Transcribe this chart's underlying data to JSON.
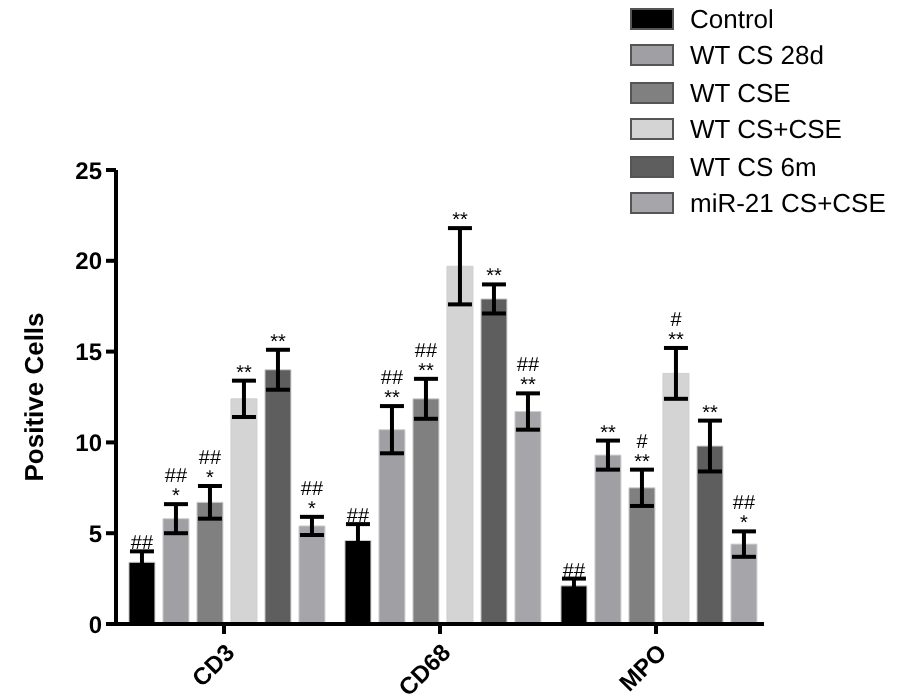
{
  "chart_data": {
    "type": "bar",
    "ylabel": "Positive Cells",
    "categories": [
      "CD3",
      "CD68",
      "MPO"
    ],
    "series": [
      {
        "name": "Control",
        "color": "#000000",
        "values": [
          3.4,
          4.6,
          2.1
        ],
        "errors": [
          0.6,
          0.9,
          0.4
        ],
        "value_labels": [
          "##",
          "##",
          "##"
        ]
      },
      {
        "name": "WT CS 28d",
        "color": "#a0a0a4",
        "values": [
          5.8,
          10.7,
          9.3
        ],
        "errors": [
          0.8,
          1.3,
          0.8
        ],
        "value_labels": [
          "##\n*",
          "##\n**",
          "**"
        ]
      },
      {
        "name": "WT CSE",
        "color": "#808080",
        "values": [
          6.7,
          12.4,
          7.5
        ],
        "errors": [
          0.9,
          1.1,
          1.0
        ],
        "value_labels": [
          "##\n*",
          "##\n**",
          "#\n**"
        ]
      },
      {
        "name": "WT CS+CSE",
        "color": "#d4d4d4",
        "values": [
          12.4,
          19.7,
          13.8
        ],
        "errors": [
          1.0,
          2.1,
          1.4
        ],
        "value_labels": [
          "**",
          "**",
          "#\n**"
        ]
      },
      {
        "name": "WT CS 6m",
        "color": "#5e5e5e",
        "values": [
          14.0,
          17.9,
          9.8
        ],
        "errors": [
          1.1,
          0.8,
          1.4
        ],
        "value_labels": [
          "**",
          "**",
          "**"
        ]
      },
      {
        "name": "miR-21 CS+CSE",
        "color": "#a6a6aa",
        "values": [
          5.4,
          11.7,
          4.4
        ],
        "errors": [
          0.5,
          1.0,
          0.7
        ],
        "value_labels": [
          "##\n*",
          "##\n**",
          "##\n*"
        ]
      }
    ],
    "ylim": [
      0,
      25
    ],
    "yticks": [
      0,
      5,
      10,
      15,
      20,
      25
    ],
    "grid": false,
    "legend": "top right"
  }
}
